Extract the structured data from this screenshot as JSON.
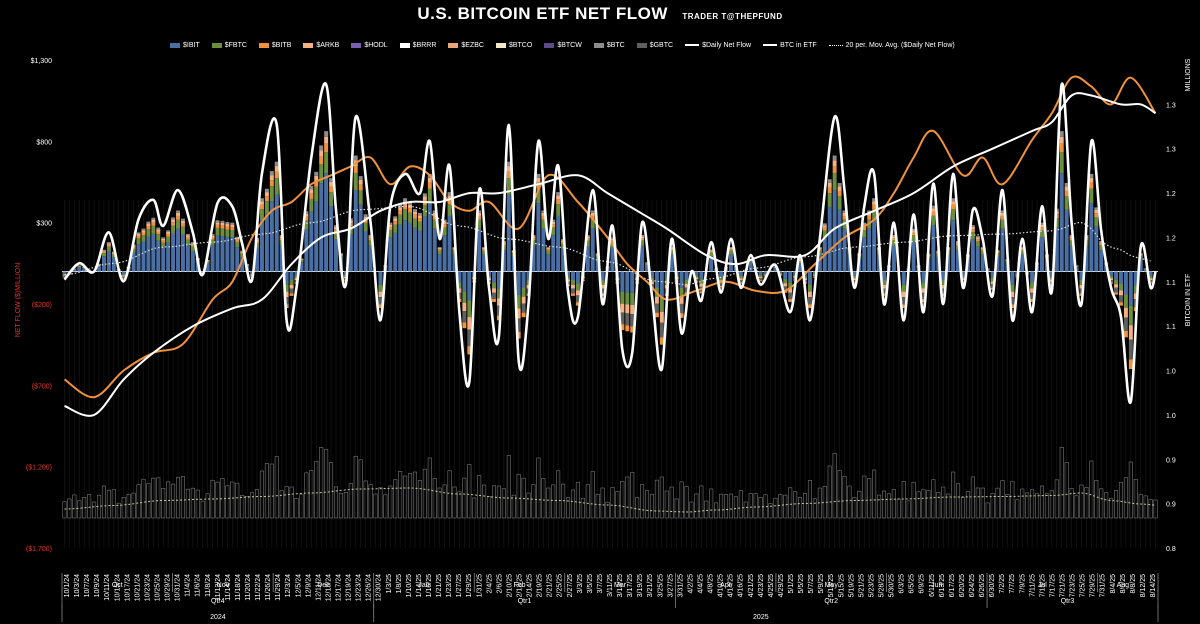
{
  "header": {
    "title": "U.S. BITCOIN ETF NET FLOW",
    "credit": "TRADER T@THEPFUND"
  },
  "legend": [
    {
      "label": "$IBIT",
      "color": "#4a6fa5",
      "kind": "bar"
    },
    {
      "label": "$FBTC",
      "color": "#6b8f3f",
      "kind": "bar"
    },
    {
      "label": "$BITB",
      "color": "#f0913d",
      "kind": "bar"
    },
    {
      "label": "$ARKB",
      "color": "#f4b183",
      "kind": "bar"
    },
    {
      "label": "$HODL",
      "color": "#7a5fb0",
      "kind": "bar"
    },
    {
      "label": "$BRRR",
      "color": "#ffffff",
      "kind": "bar"
    },
    {
      "label": "$EZBC",
      "color": "#e8a67a",
      "kind": "bar"
    },
    {
      "label": "$BTCO",
      "color": "#f3e9c9",
      "kind": "bar"
    },
    {
      "label": "$BTCW",
      "color": "#5a4a8a",
      "kind": "bar"
    },
    {
      "label": "$BTC",
      "color": "#8c8c8c",
      "kind": "bar"
    },
    {
      "label": "$GBTC",
      "color": "#5f5f5f",
      "kind": "bar"
    },
    {
      "label": "$Daily Net Flow",
      "color": "#ffffff",
      "kind": "line"
    },
    {
      "label": "BTC in ETF",
      "color": "#ffffff",
      "kind": "line"
    },
    {
      "label": "20 per. Mov. Avg. ($Daily Net Flow)",
      "color": "#ffffff",
      "kind": "dotted"
    }
  ],
  "axes": {
    "left_title": "NET FLOW ($)MILLION",
    "right_title1": "MILLIONS",
    "right_title2": "BITCOIN IN ETF",
    "left_ticks": [
      "$1,300",
      "$800",
      "$300",
      "($200)",
      "($700)",
      "($1,200)",
      "($1,700)"
    ],
    "right_ticks": [
      "1.3",
      "1.3",
      "1.2",
      "1.2",
      "1.1",
      "1.1",
      "1.0",
      "1.0",
      "0.9",
      "0.9",
      "0.8"
    ]
  },
  "x_axis": {
    "date_labels": [
      "10/1/24",
      "10/3/24",
      "10/7/24",
      "10/9/24",
      "10/11/24",
      "10/15/24",
      "10/17/24",
      "10/21/24",
      "10/23/24",
      "10/25/24",
      "10/29/24",
      "10/31/24",
      "11/4/24",
      "11/6/24",
      "11/8/24",
      "11/12/24",
      "11/14/24",
      "11/18/24",
      "11/20/24",
      "11/22/24",
      "11/26/24",
      "11/29/24",
      "12/3/24",
      "12/5/24",
      "12/9/24",
      "12/11/24",
      "12/13/24",
      "12/17/24",
      "12/19/24",
      "12/23/24",
      "12/26/24",
      "12/30/24",
      "1/3/25",
      "1/8/25",
      "1/10/25",
      "1/14/25",
      "1/16/25",
      "1/21/25",
      "1/23/25",
      "1/27/25",
      "1/29/25",
      "1/31/25",
      "2/4/25",
      "2/6/25",
      "2/10/25",
      "2/12/25",
      "2/14/25",
      "2/19/25",
      "2/21/25",
      "2/25/25",
      "2/27/25",
      "3/3/25",
      "3/5/25",
      "3/7/25",
      "3/11/25",
      "3/13/25",
      "3/17/25",
      "3/19/25",
      "3/21/25",
      "3/25/25",
      "3/27/25",
      "3/31/25",
      "4/2/25",
      "4/4/25",
      "4/8/25",
      "4/10/25",
      "4/14/25",
      "4/16/25",
      "4/21/25",
      "4/23/25",
      "4/25/25",
      "4/29/25",
      "5/1/25",
      "5/5/25",
      "5/7/25",
      "5/9/25",
      "5/13/25",
      "5/15/25",
      "5/19/25",
      "5/21/25",
      "5/23/25",
      "5/28/25",
      "5/30/25",
      "6/3/25",
      "6/5/25",
      "6/9/25",
      "6/11/25",
      "6/13/25",
      "6/17/25",
      "6/20/25",
      "6/24/25",
      "6/26/25",
      "6/30/25",
      "7/2/25",
      "7/7/25",
      "7/9/25",
      "7/11/25",
      "7/15/25",
      "7/17/25",
      "7/21/25",
      "7/23/25",
      "7/25/25",
      "7/29/25",
      "7/31/25",
      "8/4/25",
      "8/6/25",
      "8/8/25",
      "8/12/25",
      "8/14/25"
    ],
    "months": [
      {
        "label": "Oct",
        "from": 0,
        "to": 11
      },
      {
        "label": "Nov",
        "from": 11,
        "to": 21
      },
      {
        "label": "Dec",
        "from": 21,
        "to": 31
      },
      {
        "label": "Jan",
        "from": 31,
        "to": 41
      },
      {
        "label": "Feb",
        "from": 41,
        "to": 50
      },
      {
        "label": "Mar",
        "from": 50,
        "to": 61
      },
      {
        "label": "Apr",
        "from": 61,
        "to": 71
      },
      {
        "label": "May",
        "from": 71,
        "to": 82
      },
      {
        "label": "Jun",
        "from": 82,
        "to": 92
      },
      {
        "label": "Jul",
        "from": 92,
        "to": 103
      },
      {
        "label": "Aug",
        "from": 103,
        "to": 108
      }
    ],
    "quarters": [
      {
        "label": "Qtr4",
        "from": 0,
        "to": 31
      },
      {
        "label": "Qtr1",
        "from": 31,
        "to": 61
      },
      {
        "label": "Qtr2",
        "from": 61,
        "to": 92
      },
      {
        "label": "Qtr3",
        "from": 92,
        "to": 108
      }
    ],
    "years": [
      {
        "label": "2024",
        "from": 0,
        "to": 31
      },
      {
        "label": "2025",
        "from": 31,
        "to": 108
      }
    ]
  },
  "chart_data": {
    "type": "bar",
    "title": "U.S. BITCOIN ETF NET FLOW",
    "ylabel": "NET FLOW ($)MILLION",
    "y2label": "BITCOIN IN ETF (MILLIONS)",
    "ylim": [
      -1700,
      1300
    ],
    "y2lim": [
      0.8,
      1.35
    ],
    "n_days": 222,
    "daily_net_flow_keypoints": [
      [
        0,
        -50
      ],
      [
        3,
        50
      ],
      [
        6,
        0
      ],
      [
        9,
        240
      ],
      [
        12,
        -60
      ],
      [
        15,
        320
      ],
      [
        18,
        440
      ],
      [
        20,
        280
      ],
      [
        23,
        500
      ],
      [
        26,
        240
      ],
      [
        28,
        -20
      ],
      [
        31,
        420
      ],
      [
        34,
        400
      ],
      [
        36,
        170
      ],
      [
        38,
        -50
      ],
      [
        40,
        600
      ],
      [
        43,
        900
      ],
      [
        45,
        -300
      ],
      [
        47,
        -100
      ],
      [
        50,
        700
      ],
      [
        53,
        1150
      ],
      [
        55,
        380
      ],
      [
        57,
        -80
      ],
      [
        59,
        950
      ],
      [
        62,
        300
      ],
      [
        64,
        -300
      ],
      [
        66,
        400
      ],
      [
        69,
        600
      ],
      [
        72,
        480
      ],
      [
        74,
        800
      ],
      [
        76,
        200
      ],
      [
        78,
        650
      ],
      [
        80,
        -250
      ],
      [
        82,
        -680
      ],
      [
        84,
        500
      ],
      [
        86,
        -100
      ],
      [
        88,
        -400
      ],
      [
        90,
        900
      ],
      [
        92,
        -550
      ],
      [
        94,
        -200
      ],
      [
        96,
        800
      ],
      [
        98,
        200
      ],
      [
        100,
        650
      ],
      [
        102,
        -120
      ],
      [
        104,
        -280
      ],
      [
        107,
        500
      ],
      [
        109,
        -200
      ],
      [
        111,
        280
      ],
      [
        113,
        -480
      ],
      [
        115,
        -500
      ],
      [
        117,
        300
      ],
      [
        119,
        -150
      ],
      [
        121,
        -600
      ],
      [
        123,
        200
      ],
      [
        125,
        -380
      ],
      [
        127,
        0
      ],
      [
        129,
        -180
      ],
      [
        131,
        180
      ],
      [
        133,
        -130
      ],
      [
        135,
        200
      ],
      [
        137,
        -100
      ],
      [
        139,
        100
      ],
      [
        141,
        -80
      ],
      [
        144,
        40
      ],
      [
        147,
        -250
      ],
      [
        149,
        100
      ],
      [
        151,
        -300
      ],
      [
        153,
        200
      ],
      [
        156,
        950
      ],
      [
        158,
        500
      ],
      [
        160,
        -100
      ],
      [
        162,
        400
      ],
      [
        164,
        600
      ],
      [
        166,
        -200
      ],
      [
        168,
        300
      ],
      [
        170,
        -300
      ],
      [
        172,
        350
      ],
      [
        174,
        -250
      ],
      [
        176,
        540
      ],
      [
        178,
        -200
      ],
      [
        180,
        600
      ],
      [
        182,
        -100
      ],
      [
        184,
        380
      ],
      [
        186,
        200
      ],
      [
        188,
        -150
      ],
      [
        190,
        500
      ],
      [
        192,
        -300
      ],
      [
        194,
        200
      ],
      [
        196,
        -250
      ],
      [
        198,
        400
      ],
      [
        200,
        -120
      ],
      [
        202,
        1150
      ],
      [
        204,
        300
      ],
      [
        206,
        -200
      ],
      [
        208,
        800
      ],
      [
        210,
        250
      ],
      [
        212,
        -100
      ],
      [
        214,
        -280
      ],
      [
        216,
        -800
      ],
      [
        218,
        150
      ],
      [
        220,
        -100
      ],
      [
        221,
        0
      ]
    ],
    "btc_in_etf_keypoints": [
      [
        0,
        0.96
      ],
      [
        6,
        0.95
      ],
      [
        12,
        0.99
      ],
      [
        18,
        1.02
      ],
      [
        26,
        1.05
      ],
      [
        34,
        1.07
      ],
      [
        40,
        1.08
      ],
      [
        46,
        1.12
      ],
      [
        52,
        1.15
      ],
      [
        58,
        1.16
      ],
      [
        64,
        1.18
      ],
      [
        70,
        1.19
      ],
      [
        76,
        1.19
      ],
      [
        82,
        1.2
      ],
      [
        88,
        1.2
      ],
      [
        96,
        1.21
      ],
      [
        104,
        1.22
      ],
      [
        110,
        1.2
      ],
      [
        116,
        1.18
      ],
      [
        122,
        1.16
      ],
      [
        130,
        1.13
      ],
      [
        136,
        1.12
      ],
      [
        142,
        1.13
      ],
      [
        150,
        1.13
      ],
      [
        156,
        1.16
      ],
      [
        164,
        1.18
      ],
      [
        172,
        1.2
      ],
      [
        180,
        1.23
      ],
      [
        188,
        1.25
      ],
      [
        196,
        1.27
      ],
      [
        200,
        1.28
      ],
      [
        204,
        1.31
      ],
      [
        208,
        1.31
      ],
      [
        214,
        1.3
      ],
      [
        218,
        1.3
      ],
      [
        221,
        1.29
      ]
    ],
    "price_line_keypoints": [
      [
        0,
        0.99
      ],
      [
        6,
        0.97
      ],
      [
        12,
        1.0
      ],
      [
        18,
        1.02
      ],
      [
        24,
        1.03
      ],
      [
        30,
        1.08
      ],
      [
        34,
        1.1
      ],
      [
        38,
        1.15
      ],
      [
        42,
        1.18
      ],
      [
        46,
        1.19
      ],
      [
        50,
        1.21
      ],
      [
        54,
        1.22
      ],
      [
        58,
        1.23
      ],
      [
        62,
        1.24
      ],
      [
        66,
        1.21
      ],
      [
        70,
        1.23
      ],
      [
        74,
        1.22
      ],
      [
        78,
        1.19
      ],
      [
        82,
        1.18
      ],
      [
        86,
        1.19
      ],
      [
        92,
        1.16
      ],
      [
        98,
        1.22
      ],
      [
        104,
        1.19
      ],
      [
        110,
        1.15
      ],
      [
        114,
        1.12
      ],
      [
        118,
        1.1
      ],
      [
        122,
        1.08
      ],
      [
        128,
        1.09
      ],
      [
        134,
        1.1
      ],
      [
        140,
        1.09
      ],
      [
        146,
        1.09
      ],
      [
        152,
        1.12
      ],
      [
        158,
        1.15
      ],
      [
        164,
        1.17
      ],
      [
        168,
        1.2
      ],
      [
        172,
        1.24
      ],
      [
        176,
        1.27
      ],
      [
        182,
        1.22
      ],
      [
        186,
        1.24
      ],
      [
        190,
        1.21
      ],
      [
        196,
        1.26
      ],
      [
        200,
        1.29
      ],
      [
        204,
        1.33
      ],
      [
        208,
        1.32
      ],
      [
        212,
        1.3
      ],
      [
        216,
        1.33
      ],
      [
        221,
        1.29
      ]
    ],
    "moving_avg_keypoints": [
      [
        0,
        -20
      ],
      [
        10,
        50
      ],
      [
        20,
        150
      ],
      [
        30,
        180
      ],
      [
        40,
        230
      ],
      [
        50,
        300
      ],
      [
        60,
        380
      ],
      [
        70,
        400
      ],
      [
        80,
        280
      ],
      [
        90,
        200
      ],
      [
        100,
        150
      ],
      [
        110,
        60
      ],
      [
        120,
        -60
      ],
      [
        126,
        -80
      ],
      [
        132,
        -40
      ],
      [
        140,
        20
      ],
      [
        150,
        90
      ],
      [
        160,
        150
      ],
      [
        170,
        180
      ],
      [
        180,
        220
      ],
      [
        190,
        230
      ],
      [
        200,
        250
      ],
      [
        206,
        300
      ],
      [
        212,
        150
      ],
      [
        218,
        80
      ],
      [
        221,
        60
      ]
    ],
    "stack_series": [
      "$IBIT",
      "$FBTC",
      "$BITB",
      "$ARKB",
      "$HODL",
      "$BRRR",
      "$EZBC",
      "$BTCO",
      "$BTCW",
      "$BTC",
      "$GBTC"
    ]
  }
}
